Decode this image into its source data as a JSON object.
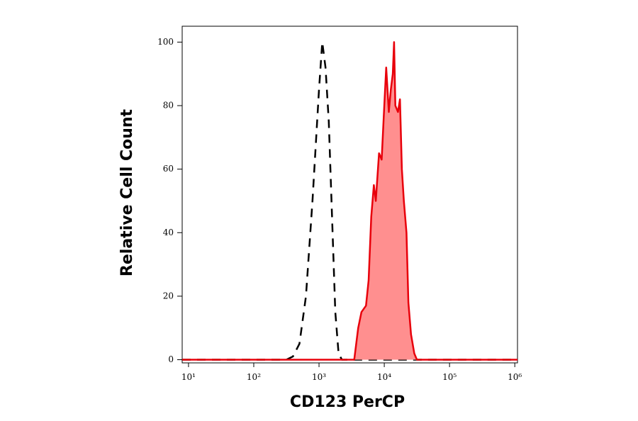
{
  "chart_data": {
    "type": "histogram-overlay",
    "xlabel": "CD123 PerCP",
    "ylabel": "Relative Cell Count",
    "xscale": "log",
    "xlim": [
      8,
      1100000
    ],
    "ylim": [
      -1,
      105
    ],
    "xticks": [
      {
        "value": 10,
        "label": "10¹"
      },
      {
        "value": 100,
        "label": "10²"
      },
      {
        "value": 1000,
        "label": "10³"
      },
      {
        "value": 10000,
        "label": "10⁴"
      },
      {
        "value": 100000,
        "label": "10⁵"
      },
      {
        "value": 1000000,
        "label": "10⁶"
      }
    ],
    "yticks": [
      0,
      20,
      40,
      60,
      80,
      100
    ],
    "series": [
      {
        "color": "#000000",
        "style": "dashed",
        "x": [
          8,
          316,
          398,
          501,
          631,
          794,
          1000,
          1122,
          1259,
          1413,
          1585,
          1778,
          1995,
          2239,
          1100000
        ],
        "values": [
          0,
          0,
          1,
          5,
          20,
          50,
          85,
          100,
          92,
          75,
          45,
          15,
          2,
          0,
          0
        ]
      },
      {
        "color": "#e8000b",
        "style": "solid",
        "fill": "#ff8f8f",
        "x": [
          8,
          3467,
          3981,
          4467,
          5248,
          5754,
          6310,
          6918,
          7413,
          8318,
          9120,
          10000,
          10715,
          11749,
          12589,
          13490,
          14125,
          14791,
          16218,
          17378,
          18621,
          19953,
          21878,
          23442,
          25704,
          28840,
          31623,
          1100000
        ],
        "values": [
          0,
          0,
          10,
          15,
          17,
          25,
          45,
          55,
          50,
          65,
          63,
          80,
          92,
          78,
          85,
          90,
          100,
          80,
          78,
          82,
          60,
          50,
          40,
          18,
          8,
          2,
          0,
          0
        ]
      }
    ]
  }
}
